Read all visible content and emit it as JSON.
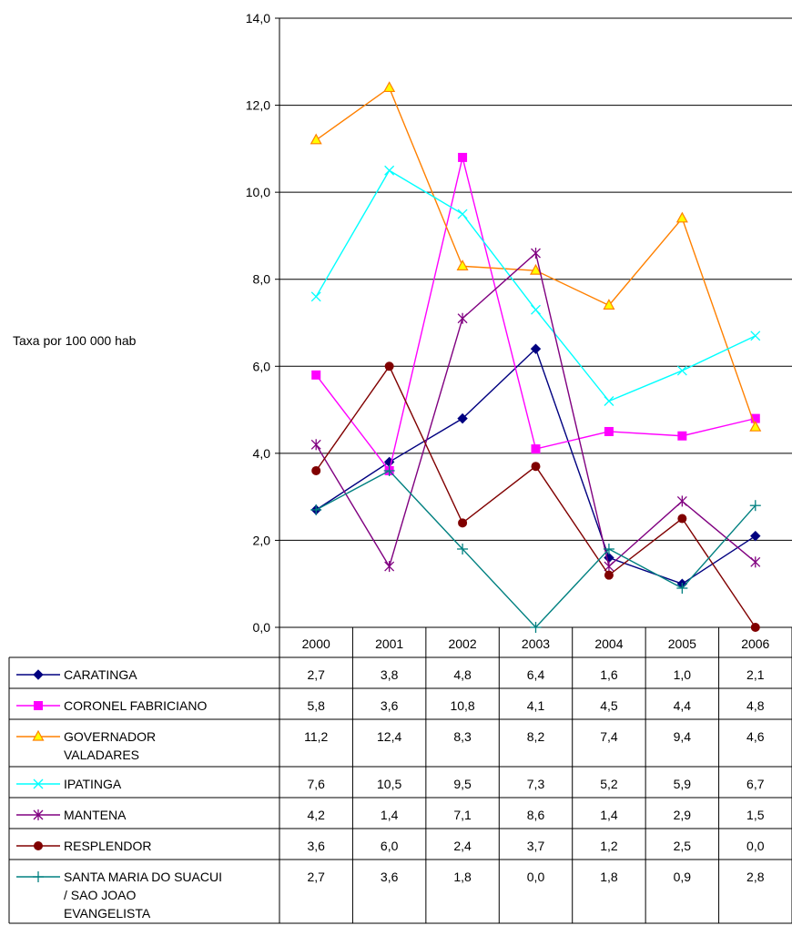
{
  "chart_data": {
    "type": "line",
    "ylabel": "Taxa por 100 000 hab",
    "xlabel": "",
    "title": "",
    "ylim": [
      0,
      14
    ],
    "yticks": [
      "0,0",
      "2,0",
      "4,0",
      "6,0",
      "8,0",
      "10,0",
      "12,0",
      "14,0"
    ],
    "categories": [
      "2000",
      "2001",
      "2002",
      "2003",
      "2004",
      "2005",
      "2006"
    ],
    "grid": "horizontal",
    "legend": "data table below chart",
    "series": [
      {
        "name": "CARATINGA",
        "lines": [
          "CARATINGA"
        ],
        "color": "#000080",
        "marker": "diamond",
        "values": [
          2.7,
          3.8,
          4.8,
          6.4,
          1.6,
          1.0,
          2.1
        ],
        "labels": [
          "2,7",
          "3,8",
          "4,8",
          "6,4",
          "1,6",
          "1,0",
          "2,1"
        ]
      },
      {
        "name": "CORONEL FABRICIANO",
        "lines": [
          "CORONEL FABRICIANO"
        ],
        "color": "#FF00FF",
        "marker": "square",
        "values": [
          5.8,
          3.6,
          10.8,
          4.1,
          4.5,
          4.4,
          4.8
        ],
        "labels": [
          "5,8",
          "3,6",
          "10,8",
          "4,1",
          "4,5",
          "4,4",
          "4,8"
        ]
      },
      {
        "name": "GOVERNADOR VALADARES",
        "lines": [
          "GOVERNADOR",
          "VALADARES"
        ],
        "color": "#FF8000",
        "fill": "#FFFF00",
        "marker": "triangle",
        "values": [
          11.2,
          12.4,
          8.3,
          8.2,
          7.4,
          9.4,
          4.6
        ],
        "labels": [
          "11,2",
          "12,4",
          "8,3",
          "8,2",
          "7,4",
          "9,4",
          "4,6"
        ]
      },
      {
        "name": "IPATINGA",
        "lines": [
          "IPATINGA"
        ],
        "color": "#00FFFF",
        "marker": "x",
        "values": [
          7.6,
          10.5,
          9.5,
          7.3,
          5.2,
          5.9,
          6.7
        ],
        "labels": [
          "7,6",
          "10,5",
          "9,5",
          "7,3",
          "5,2",
          "5,9",
          "6,7"
        ]
      },
      {
        "name": "MANTENA",
        "lines": [
          "MANTENA"
        ],
        "color": "#800080",
        "marker": "star",
        "values": [
          4.2,
          1.4,
          7.1,
          8.6,
          1.4,
          2.9,
          1.5
        ],
        "labels": [
          "4,2",
          "1,4",
          "7,1",
          "8,6",
          "1,4",
          "2,9",
          "1,5"
        ]
      },
      {
        "name": "RESPLENDOR",
        "lines": [
          "RESPLENDOR"
        ],
        "color": "#800000",
        "marker": "circle",
        "values": [
          3.6,
          6.0,
          2.4,
          3.7,
          1.2,
          2.5,
          0.0
        ],
        "labels": [
          "3,6",
          "6,0",
          "2,4",
          "3,7",
          "1,2",
          "2,5",
          "0,0"
        ]
      },
      {
        "name": "SANTA MARIA DO SUACUI / SAO JOAO EVANGELISTA",
        "lines": [
          "SANTA MARIA DO SUACUI",
          "/ SAO JOAO",
          "EVANGELISTA"
        ],
        "color": "#008080",
        "marker": "plus",
        "values": [
          2.7,
          3.6,
          1.8,
          0.0,
          1.8,
          0.9,
          2.8
        ],
        "labels": [
          "2,7",
          "3,6",
          "1,8",
          "0,0",
          "1,8",
          "0,9",
          "2,8"
        ]
      }
    ]
  }
}
